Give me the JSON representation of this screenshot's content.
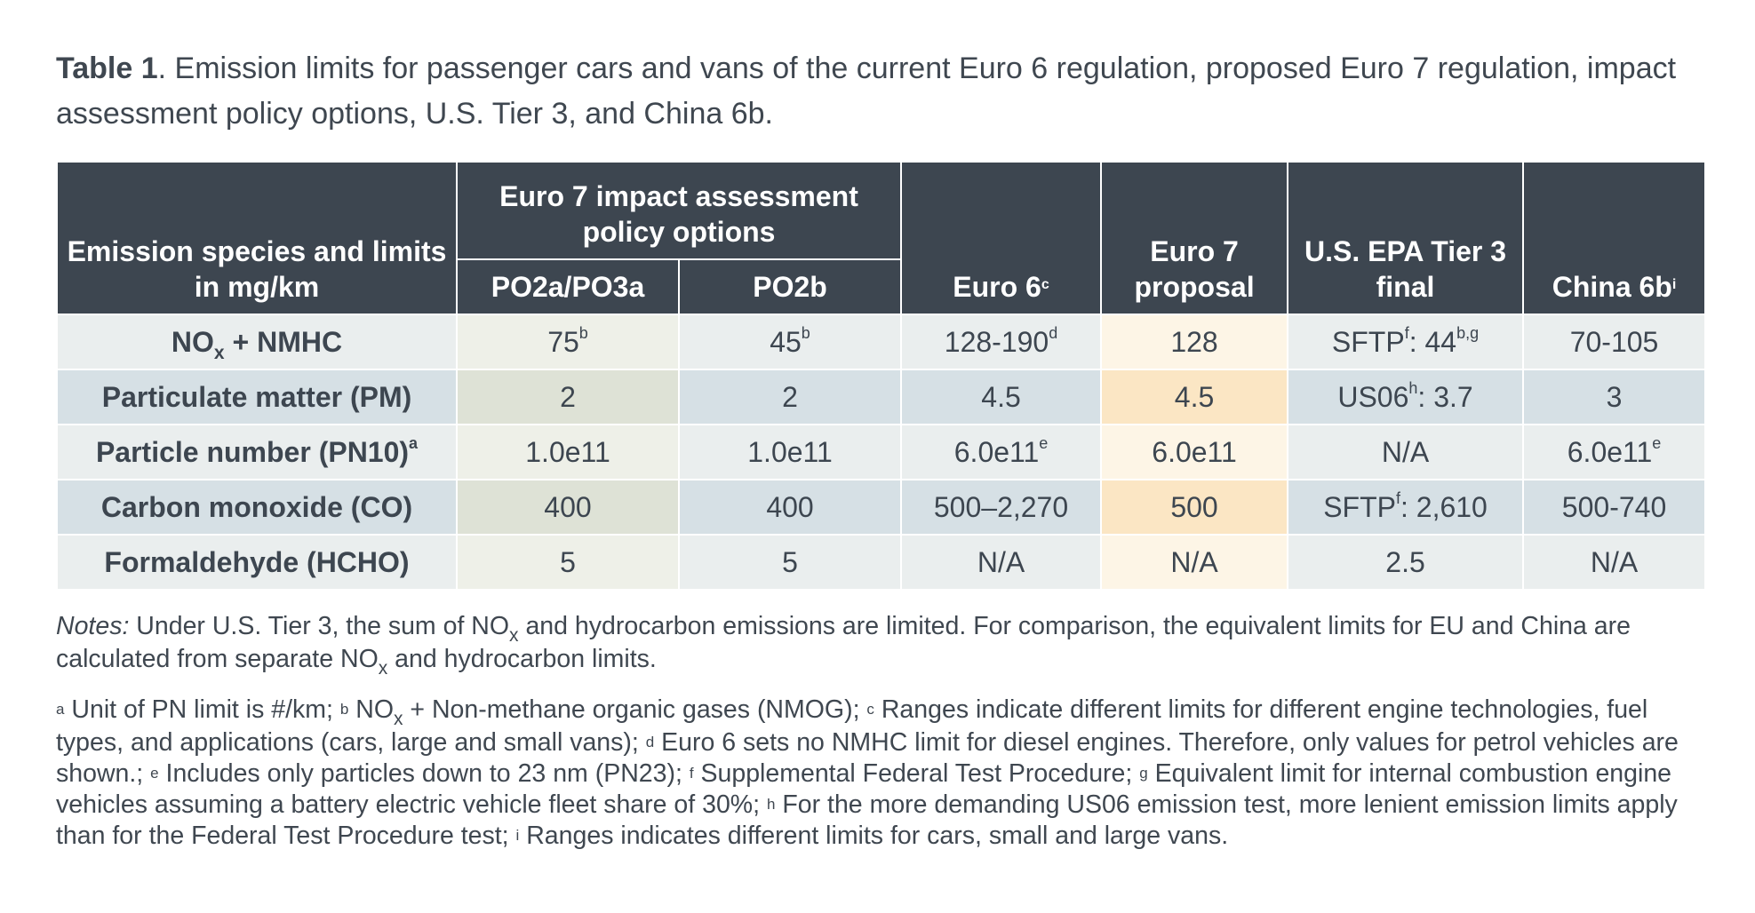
{
  "caption": {
    "label": "Table 1",
    "text": ". Emission limits for passenger cars and vans of the current Euro 6 regulation, proposed Euro 7 regulation, impact assessment policy options, U.S. Tier 3, and China 6b."
  },
  "table": {
    "col1_header": "Emission species and limits in mg/km",
    "group_header": "Euro 7 impact assessment policy options",
    "sub_headers": [
      "PO2a/PO3a",
      "PO2b"
    ],
    "euro6_header": "Euro 6",
    "euro6_header_sup": "c",
    "euro7_header": "Euro 7 proposal",
    "us_header": "U.S. EPA Tier 3 final",
    "china_header": "China 6b",
    "china_header_sup": "i",
    "rows": [
      {
        "label_main": "NO",
        "label_sub": "x",
        "label_rest": " + NMHC",
        "label_sup": "",
        "cells": [
          {
            "v": "75",
            "sup": "b"
          },
          {
            "v": "45",
            "sup": "b"
          },
          {
            "v": "128-190",
            "sup": "d"
          },
          {
            "v": "128",
            "sup": ""
          },
          {
            "v": "SFTP",
            "sup": "f",
            "v2": ": 44",
            "sup2": "b,g"
          },
          {
            "v": "70-105",
            "sup": ""
          }
        ]
      },
      {
        "label_main": "Particulate matter (PM)",
        "label_sub": "",
        "label_rest": "",
        "label_sup": "",
        "cells": [
          {
            "v": "2",
            "sup": ""
          },
          {
            "v": "2",
            "sup": ""
          },
          {
            "v": "4.5",
            "sup": ""
          },
          {
            "v": "4.5",
            "sup": ""
          },
          {
            "v": "US06",
            "sup": "h",
            "v2": ": 3.7",
            "sup2": ""
          },
          {
            "v": "3",
            "sup": ""
          }
        ]
      },
      {
        "label_main": "Particle number (PN10)",
        "label_sub": "",
        "label_rest": "",
        "label_sup": "a",
        "cells": [
          {
            "v": "1.0e11",
            "sup": ""
          },
          {
            "v": "1.0e11",
            "sup": ""
          },
          {
            "v": "6.0e11",
            "sup": "e"
          },
          {
            "v": "6.0e11",
            "sup": ""
          },
          {
            "v": "N/A",
            "sup": ""
          },
          {
            "v": "6.0e11",
            "sup": "e"
          }
        ]
      },
      {
        "label_main": "Carbon monoxide (CO)",
        "label_sub": "",
        "label_rest": "",
        "label_sup": "",
        "cells": [
          {
            "v": "400",
            "sup": ""
          },
          {
            "v": "400",
            "sup": ""
          },
          {
            "v": "500–2,270",
            "sup": ""
          },
          {
            "v": "500",
            "sup": ""
          },
          {
            "v": "SFTP",
            "sup": "f",
            "v2": ": 2,610",
            "sup2": ""
          },
          {
            "v": "500-740",
            "sup": ""
          }
        ]
      },
      {
        "label_main": "Formaldehyde (HCHO)",
        "label_sub": "",
        "label_rest": "",
        "label_sup": "",
        "cells": [
          {
            "v": "5",
            "sup": ""
          },
          {
            "v": "5",
            "sup": ""
          },
          {
            "v": "N/A",
            "sup": ""
          },
          {
            "v": "N/A",
            "sup": ""
          },
          {
            "v": "2.5",
            "sup": ""
          },
          {
            "v": "N/A",
            "sup": ""
          }
        ]
      }
    ]
  },
  "notes": {
    "label": "Notes:",
    "text_1": " Under U.S. Tier 3, the sum of NO",
    "sub_1": "x",
    "text_2": " and hydrocarbon emissions are limited. For comparison, the equivalent limits for EU and China are calculated from separate NO",
    "sub_2": "x",
    "text_3": " and hydrocarbon limits."
  },
  "footnotes": [
    {
      "sup": "a",
      "text": " Unit of PN limit is #/km; "
    },
    {
      "sup": "b",
      "text": " NO",
      "sub": "x",
      "text2": " + Non-methane organic gases (NMOG); "
    },
    {
      "sup": "c",
      "text": " Ranges indicate different limits for different engine technologies, fuel types, and applications (cars, large and small vans); "
    },
    {
      "sup": "d",
      "text": " Euro 6 sets no NMHC limit for diesel engines. Therefore, only values for petrol vehicles are shown.; "
    },
    {
      "sup": "e",
      "text": " Includes only particles down to 23 nm (PN23); "
    },
    {
      "sup": "f",
      "text": " Supplemental Federal Test Procedure; "
    },
    {
      "sup": "g",
      "text": " Equivalent limit for internal combustion engine vehicles assuming a battery electric vehicle fleet share of 30%; "
    },
    {
      "sup": "h",
      "text": " For the more demanding US06 emission test, more lenient emission limits apply than for the Federal Test Procedure test; "
    },
    {
      "sup": "i",
      "text": " Ranges indicates different limits for cars, small and large vans."
    }
  ],
  "colors": {
    "header_dark": "#3d4650",
    "euro7_accent": "#f2ac1f",
    "po2a_green": "#9aae74",
    "po2b_gray": "#74787e"
  }
}
